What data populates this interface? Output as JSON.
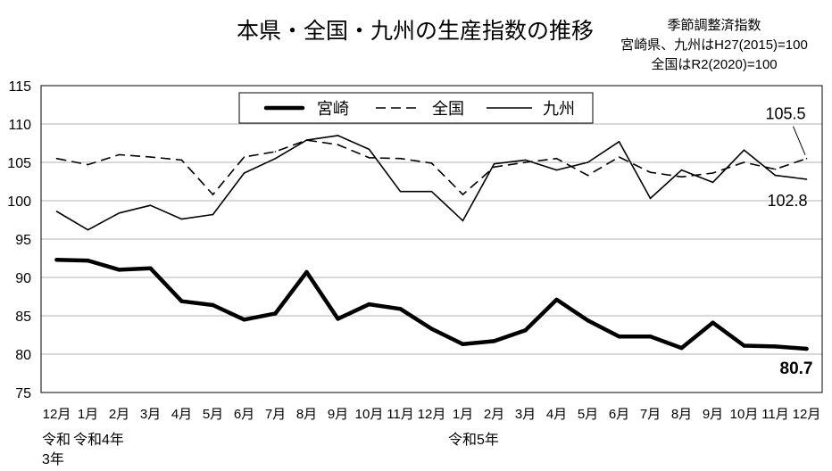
{
  "chart_data": {
    "type": "line",
    "title": "本県・全国・九州の生産指数の推移",
    "notes": [
      "季節調整済指数",
      "宮崎県、九州はH27(2015)=100",
      "全国はR2(2020)=100"
    ],
    "categories": [
      "12月",
      "1月",
      "2月",
      "3月",
      "4月",
      "5月",
      "6月",
      "7月",
      "8月",
      "9月",
      "10月",
      "11月",
      "12月",
      "1月",
      "2月",
      "3月",
      "4月",
      "5月",
      "6月",
      "7月",
      "8月",
      "9月",
      "10月",
      "11月",
      "12月"
    ],
    "year_labels": [
      {
        "text": "令和3年",
        "category_index": 0
      },
      {
        "text": "令和4年",
        "category_index": 1
      },
      {
        "text": "令和5年",
        "category_index": 13
      }
    ],
    "ylim": [
      75,
      115
    ],
    "yticks": [
      75,
      80,
      85,
      90,
      95,
      100,
      105,
      110,
      115
    ],
    "grid": true,
    "legend_position": "top-center",
    "series": [
      {
        "name": "宮崎",
        "color": "#000000",
        "end_label": "80.7",
        "values": [
          92.3,
          92.2,
          91.0,
          91.2,
          86.9,
          86.4,
          84.5,
          85.3,
          90.7,
          84.6,
          86.5,
          85.9,
          83.3,
          81.3,
          81.7,
          83.1,
          87.1,
          84.4,
          82.3,
          82.3,
          80.8,
          84.1,
          81.1,
          81.0,
          80.7
        ]
      },
      {
        "name": "全国",
        "color": "#000000",
        "end_label": "105.5",
        "values": [
          105.5,
          104.7,
          106.0,
          105.7,
          105.3,
          100.8,
          105.7,
          106.4,
          107.9,
          107.3,
          105.6,
          105.5,
          104.9,
          100.8,
          104.4,
          105.0,
          105.5,
          103.3,
          105.7,
          103.7,
          103.1,
          103.6,
          105.0,
          104.1,
          105.5
        ]
      },
      {
        "name": "九州",
        "color": "#000000",
        "end_label": "102.8",
        "values": [
          98.6,
          96.2,
          98.4,
          99.4,
          97.6,
          98.2,
          103.6,
          105.5,
          107.9,
          108.5,
          106.7,
          101.2,
          101.2,
          97.4,
          104.8,
          105.3,
          104.0,
          105.0,
          107.7,
          100.3,
          104.0,
          102.4,
          106.6,
          103.3,
          102.8
        ]
      }
    ]
  }
}
